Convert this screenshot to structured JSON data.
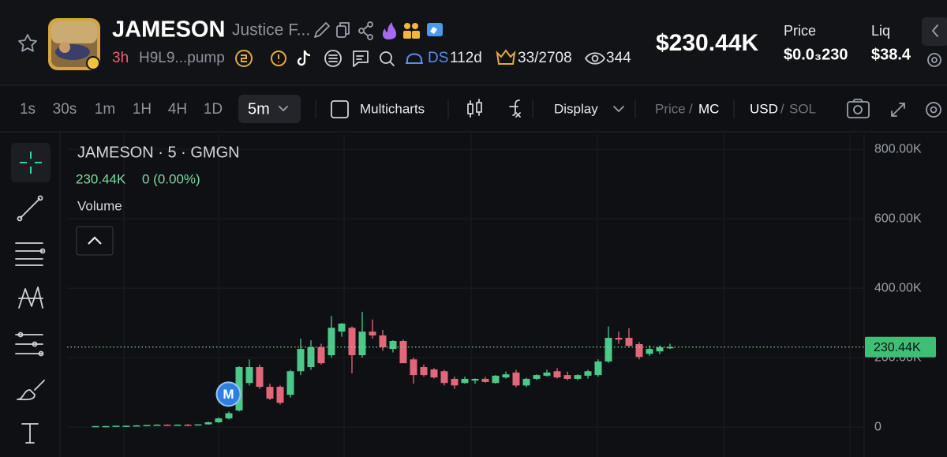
{
  "header": {
    "name": "JAMESON",
    "subtitle": "Justice F...",
    "age": "3h",
    "address": "H9L9...pump",
    "ds": "DS",
    "ds_age": "112d",
    "holders": "33/2708",
    "views": "344",
    "market_cap": "$230.44K",
    "price_label": "Price",
    "price": "$0.0₃230",
    "liq_label": "Liq",
    "liq": "$38.4"
  },
  "toolbar": {
    "intervals": [
      "1s",
      "30s",
      "1m",
      "1H",
      "4H",
      "1D"
    ],
    "selected_interval": "5m",
    "multicharts": "Multicharts",
    "display": "Display",
    "price": "Price",
    "mc": "MC",
    "usd": "USD",
    "sol": "SOL",
    "separator": "/"
  },
  "chart_data": {
    "type": "candlestick",
    "title": "JAMESON · 5 · GMGN",
    "change": "0 (0.00%)",
    "volume_label": "Volume",
    "marker": "M",
    "current_value": 230440,
    "current_value_label": "230.44K",
    "up_color": "#4cc98a",
    "down_color": "#e3677b",
    "open": [
      2000,
      3000,
      3000,
      4000,
      4000,
      5000,
      6000,
      7000,
      6000,
      7000,
      6000,
      8000,
      14000,
      25000,
      48000,
      127000,
      173000,
      116000,
      116000,
      93000,
      161000,
      173000,
      230000,
      207000,
      275000,
      286000,
      207000,
      275000,
      264000,
      225000,
      248000,
      195000,
      173000,
      166000,
      161000,
      139000,
      127000,
      134000,
      139000,
      127000,
      143000,
      157000,
      120000,
      139000,
      148000,
      161000,
      150000,
      139000,
      148000,
      150000,
      189000,
      257000,
      257000,
      239000,
      211000,
      218000,
      230000
    ],
    "high": [
      3000,
      4000,
      4000,
      5000,
      6000,
      6000,
      8000,
      8000,
      8000,
      9000,
      8000,
      16000,
      28000,
      45000,
      175000,
      195000,
      180000,
      125000,
      120000,
      165000,
      255000,
      250000,
      240000,
      320000,
      300000,
      290000,
      332000,
      310000,
      280000,
      250000,
      252000,
      200000,
      180000,
      170000,
      165000,
      145000,
      145000,
      140000,
      145000,
      150000,
      160000,
      165000,
      142000,
      152000,
      165000,
      170000,
      160000,
      152000,
      165000,
      195000,
      290000,
      275000,
      285000,
      245000,
      235000,
      235000,
      240000
    ],
    "low": [
      2000,
      3000,
      3000,
      3000,
      4000,
      4000,
      5000,
      6000,
      5000,
      6000,
      5000,
      7000,
      12000,
      22000,
      45000,
      120000,
      110000,
      78000,
      65000,
      85000,
      150000,
      165000,
      180000,
      200000,
      260000,
      155000,
      200000,
      255000,
      220000,
      215000,
      185000,
      125000,
      145000,
      140000,
      120000,
      110000,
      125000,
      125000,
      128000,
      125000,
      140000,
      115000,
      115000,
      135000,
      145000,
      140000,
      135000,
      135000,
      140000,
      145000,
      185000,
      240000,
      230000,
      195000,
      205000,
      210000,
      225000
    ],
    "close": [
      3000,
      3000,
      4000,
      4000,
      5000,
      6000,
      7000,
      6000,
      7000,
      6000,
      8000,
      14000,
      25000,
      40000,
      173000,
      173000,
      116000,
      82000,
      70000,
      161000,
      225000,
      230000,
      184000,
      286000,
      298000,
      207000,
      275000,
      264000,
      230000,
      248000,
      184000,
      150000,
      150000,
      143000,
      127000,
      120000,
      139000,
      139000,
      130000,
      148000,
      152000,
      120000,
      139000,
      150000,
      157000,
      143000,
      139000,
      150000,
      161000,
      189000,
      257000,
      252000,
      234000,
      202000,
      225000,
      230000,
      230440
    ],
    "ylim": [
      -86000,
      832000
    ],
    "yticks": [
      0,
      {
        "value": 200000,
        "label": "200.00K"
      },
      {
        "value": 400000,
        "label": "400.00K"
      },
      {
        "value": 600000,
        "label": "600.00K"
      },
      {
        "value": 800000,
        "label": "800.00K"
      }
    ],
    "grid": true
  }
}
